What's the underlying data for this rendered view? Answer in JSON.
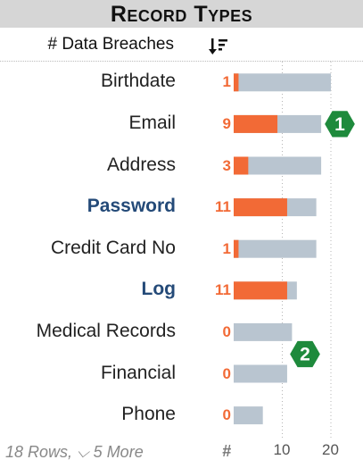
{
  "title": "Record Types",
  "header": {
    "measure_label": "# Data Breaches"
  },
  "footer": {
    "rows_text": "18 Rows, ⌵ 5 More",
    "measure_symbol": "#"
  },
  "icons": {
    "sort": "sort-descending-icon",
    "markers": "green-hexagon-badge-icon"
  },
  "colors": {
    "actual": "#f26a36",
    "reference": "#b9c5d0",
    "badge": "#1e8a3c",
    "bold_label": "#244a78"
  },
  "badges": [
    {
      "label": "1",
      "row": "Email"
    },
    {
      "label": "2",
      "row": "Financial"
    }
  ],
  "chart_data": {
    "type": "bar",
    "title": "Record Types",
    "xlabel": "# Data Breaches",
    "categories": [
      "Birthdate",
      "Email",
      "Address",
      "Password",
      "Credit Card No",
      "Log",
      "Medical Records",
      "Financial",
      "Phone"
    ],
    "bold_categories": [
      "Password",
      "Log"
    ],
    "series": [
      {
        "values": [
          1,
          9,
          3,
          11,
          1,
          11,
          0,
          0,
          0
        ]
      },
      {
        "values": [
          20,
          18,
          18,
          17,
          17,
          13,
          12,
          11,
          6
        ]
      }
    ],
    "xticks": [
      10,
      20
    ],
    "xlim": [
      0,
      22
    ]
  }
}
